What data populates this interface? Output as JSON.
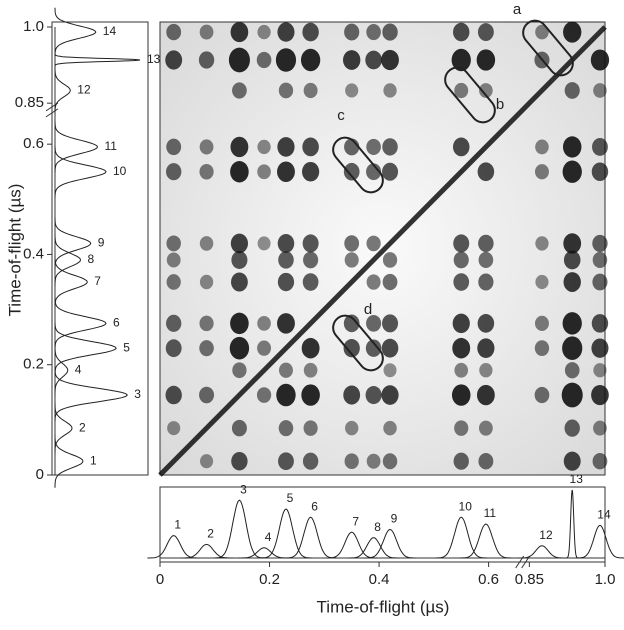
{
  "chart_data": {
    "type": "correlation-map",
    "xlabel": "Time-of-flight (µs)",
    "ylabel": "Time-of-flight (µs)",
    "xlim": [
      0,
      1
    ],
    "ylim": [
      0,
      1
    ],
    "xticks": [
      0,
      0.2,
      0.4,
      0.6,
      0.85,
      {
        "value": 1,
        "label": "1.0"
      }
    ],
    "yticks": [
      0,
      0.2,
      0.4,
      0.6,
      0.85,
      {
        "value": 1,
        "label": "1.0"
      }
    ],
    "axis_break": [
      0.65,
      0.85
    ],
    "peaks": {
      "labels": [
        "1",
        "2",
        "3",
        "4",
        "5",
        "6",
        "7",
        "8",
        "9",
        "10",
        "11",
        "12",
        "13",
        "14"
      ],
      "x": [
        0.025,
        0.085,
        0.145,
        0.19,
        0.23,
        0.275,
        0.35,
        0.39,
        0.42,
        0.55,
        0.595,
        0.875,
        0.935,
        0.99
      ],
      "heights": [
        0.33,
        0.2,
        0.85,
        0.15,
        0.72,
        0.6,
        0.38,
        0.3,
        0.42,
        0.6,
        0.5,
        0.18,
        1.0,
        0.48
      ]
    },
    "annotations": [
      "a",
      "b",
      "c",
      "d"
    ],
    "color": "#111111"
  }
}
